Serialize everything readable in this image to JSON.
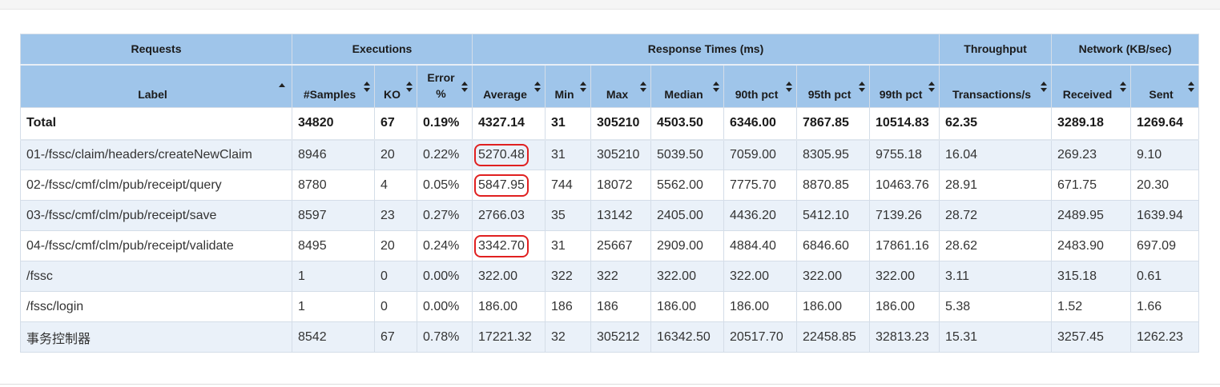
{
  "table": {
    "groups": [
      {
        "label": "Requests"
      },
      {
        "label": "Executions"
      },
      {
        "label": "Response Times (ms)"
      },
      {
        "label": "Throughput"
      },
      {
        "label": "Network (KB/sec)"
      }
    ],
    "columns": [
      "Label",
      "#Samples",
      "KO",
      "Error %",
      "Average",
      "Min",
      "Max",
      "Median",
      "90th pct",
      "95th pct",
      "99th pct",
      "Transactions/s",
      "Received",
      "Sent"
    ],
    "error_col": {
      "line1": "Error",
      "line2": "%"
    },
    "total": [
      "Total",
      "34820",
      "67",
      "0.19%",
      "4327.14",
      "31",
      "305210",
      "4503.50",
      "6346.00",
      "7867.85",
      "10514.83",
      "62.35",
      "3289.18",
      "1269.64"
    ],
    "rows": [
      [
        "01-/fssc/claim/headers/createNewClaim",
        "8946",
        "20",
        "0.22%",
        "5270.48",
        "31",
        "305210",
        "5039.50",
        "7059.00",
        "8305.95",
        "9755.18",
        "16.04",
        "269.23",
        "9.10"
      ],
      [
        "02-/fssc/cmf/clm/pub/receipt/query",
        "8780",
        "4",
        "0.05%",
        "5847.95",
        "744",
        "18072",
        "5562.00",
        "7775.70",
        "8870.85",
        "10463.76",
        "28.91",
        "671.75",
        "20.30"
      ],
      [
        "03-/fssc/cmf/clm/pub/receipt/save",
        "8597",
        "23",
        "0.27%",
        "2766.03",
        "35",
        "13142",
        "2405.00",
        "4436.20",
        "5412.10",
        "7139.26",
        "28.72",
        "2489.95",
        "1639.94"
      ],
      [
        "04-/fssc/cmf/clm/pub/receipt/validate",
        "8495",
        "20",
        "0.24%",
        "3342.70",
        "31",
        "25667",
        "2909.00",
        "4884.40",
        "6846.60",
        "17861.16",
        "28.62",
        "2483.90",
        "697.09"
      ],
      [
        "/fssc",
        "1",
        "0",
        "0.00%",
        "322.00",
        "322",
        "322",
        "322.00",
        "322.00",
        "322.00",
        "322.00",
        "3.11",
        "315.18",
        "0.61"
      ],
      [
        "/fssc/login",
        "1",
        "0",
        "0.00%",
        "186.00",
        "186",
        "186",
        "186.00",
        "186.00",
        "186.00",
        "186.00",
        "5.38",
        "1.52",
        "1.66"
      ],
      [
        "事务控制器",
        "8542",
        "67",
        "0.78%",
        "17221.32",
        "32",
        "305212",
        "16342.50",
        "20517.70",
        "22458.85",
        "32813.23",
        "15.31",
        "3257.45",
        "1262.23"
      ]
    ]
  },
  "colors": {
    "header_bg": "#9fc5ea",
    "row_alt_bg": "#eaf1f9",
    "highlight_box": "#e02020"
  },
  "icons": [
    "sort-icon",
    "sort-asc-icon"
  ]
}
